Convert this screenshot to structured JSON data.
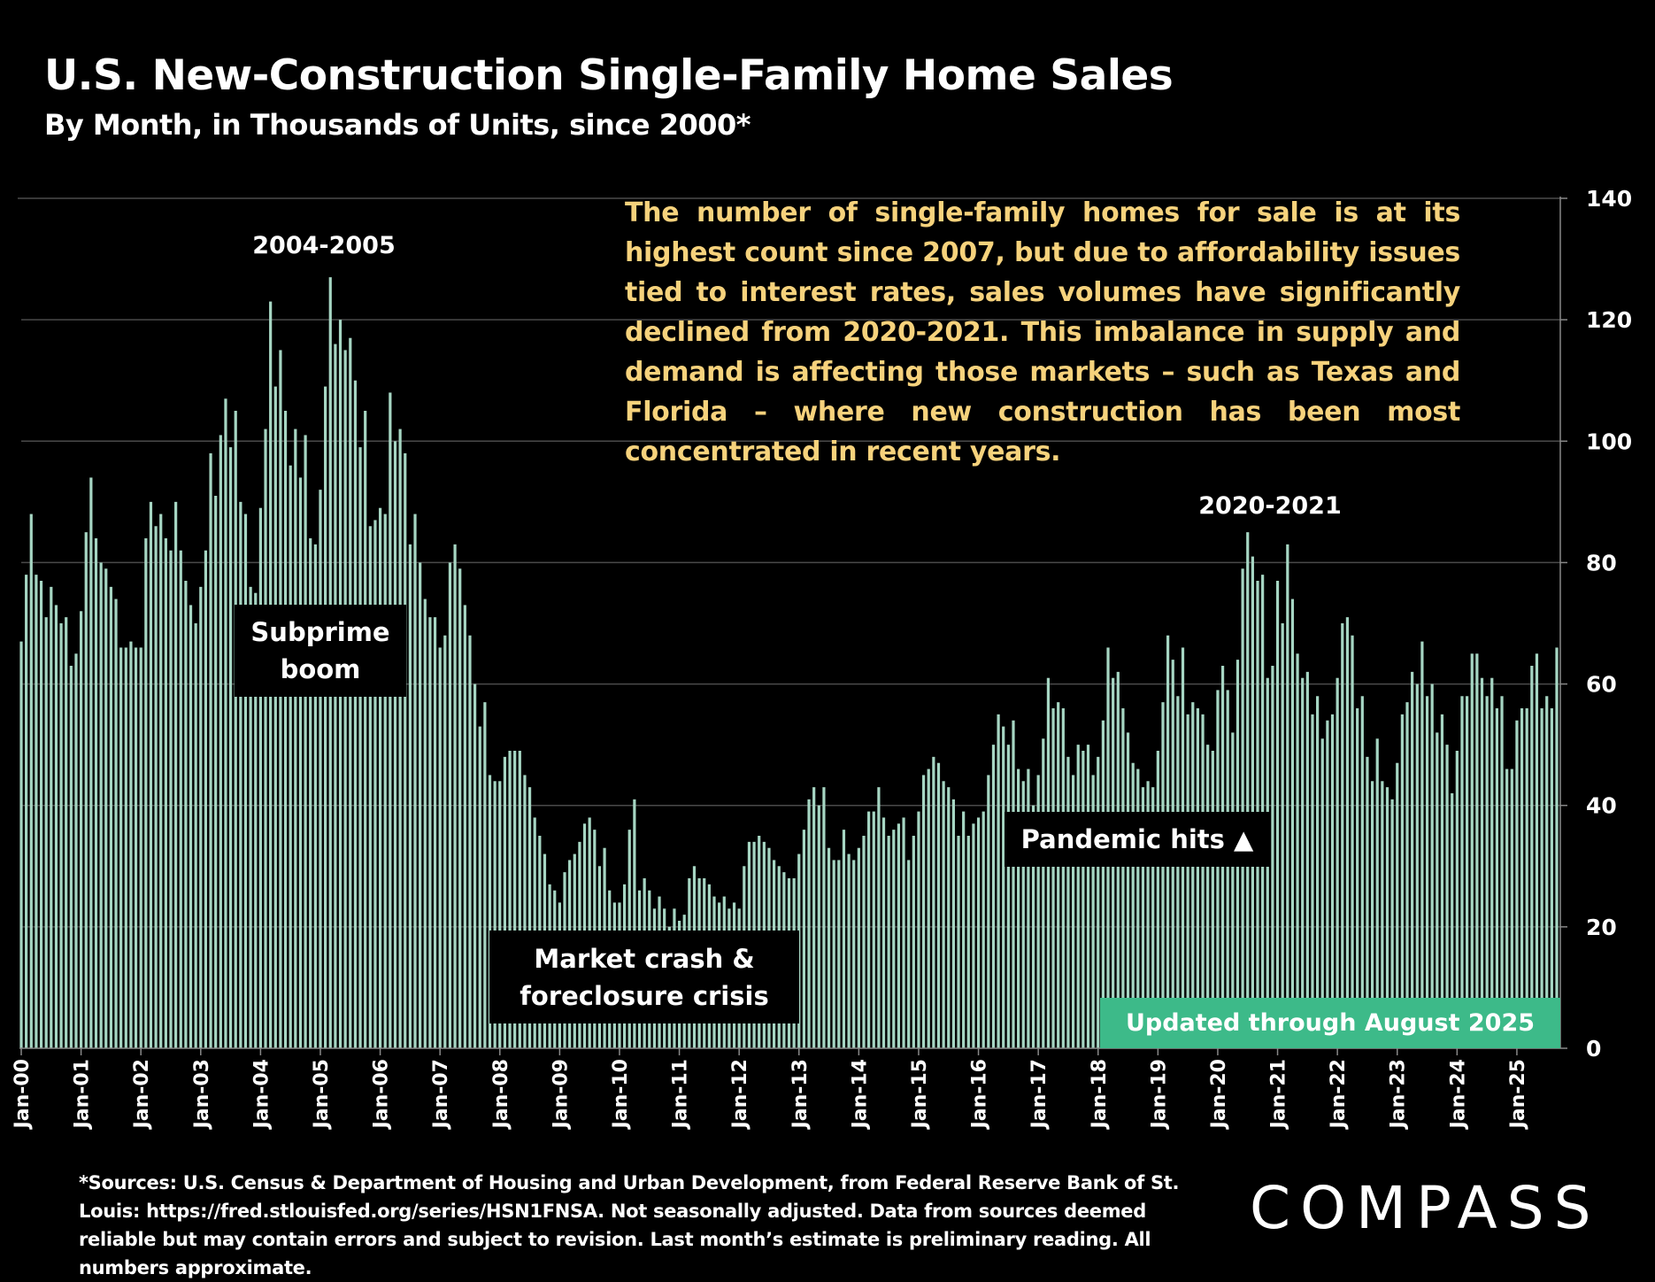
{
  "title": "U.S. New-Construction Single-Family Home Sales",
  "subtitle": "By Month, in Thousands of Units, since 2000*",
  "annotation_text": "The number of single-family homes for sale is at its highest count since 2007, but due to affordability issues tied to interest rates, sales volumes have significantly declined from 2020-2021. This imbalance in supply and demand is affecting those markets – such as Texas and Florida – where new construction has been most concentrated in recent years.",
  "labels": {
    "peak1": "2004-2005",
    "peak2": "2020-2021",
    "subprime": "Subprime boom",
    "crash": "Market crash & foreclosure crisis",
    "pandemic": "Pandemic hits ▲",
    "updated": "Updated through August 2025"
  },
  "footnote": "*Sources: U.S. Census & Department of Housing and Urban Development, from Federal Reserve Bank of St. Louis: https://fred.stlouisfed.org/series/HSN1FNSA. Not seasonally adjusted. Data from sources deemed reliable but may contain errors and subject to revision. Last month’s estimate is preliminary reading. All numbers approximate.",
  "logo": "COMPASS",
  "colors": {
    "bar": "#a6d6c3",
    "annotation": "#f6d27c",
    "updated_badge": "#3dba89",
    "background": "#000000"
  },
  "chart_data": {
    "type": "bar",
    "title": "U.S. New-Construction Single-Family Home Sales",
    "subtitle": "By Month, in Thousands of Units, since 2000*",
    "start": "Jan-00",
    "end": "Aug-25",
    "frequency": "monthly",
    "ylim": [
      0,
      140
    ],
    "y_ticks": [
      0,
      20,
      40,
      60,
      80,
      100,
      120,
      140
    ],
    "y_axis_side": "right",
    "grid": true,
    "x_tick_labels": [
      "Jan-00",
      "Jan-01",
      "Jan-02",
      "Jan-03",
      "Jan-04",
      "Jan-05",
      "Jan-06",
      "Jan-07",
      "Jan-08",
      "Jan-09",
      "Jan-10",
      "Jan-11",
      "Jan-12",
      "Jan-13",
      "Jan-14",
      "Jan-15",
      "Jan-16",
      "Jan-17",
      "Jan-18",
      "Jan-19",
      "Jan-20",
      "Jan-21",
      "Jan-22",
      "Jan-23",
      "Jan-24",
      "Jan-25"
    ],
    "values_by_year": {
      "2000": [
        67,
        78,
        88,
        78,
        77,
        71,
        76,
        73,
        70,
        71,
        63,
        65
      ],
      "2001": [
        72,
        85,
        94,
        84,
        80,
        79,
        76,
        74,
        66,
        66,
        67,
        66
      ],
      "2002": [
        66,
        84,
        90,
        86,
        88,
        84,
        82,
        90,
        82,
        77,
        73,
        70
      ],
      "2003": [
        76,
        82,
        98,
        91,
        101,
        107,
        99,
        105,
        90,
        88,
        76,
        75
      ],
      "2004": [
        89,
        102,
        123,
        109,
        115,
        105,
        96,
        102,
        94,
        101,
        84,
        83
      ],
      "2005": [
        92,
        109,
        127,
        116,
        120,
        115,
        117,
        110,
        99,
        105,
        86,
        87
      ],
      "2006": [
        89,
        88,
        108,
        100,
        102,
        98,
        83,
        88,
        80,
        74,
        71,
        71
      ],
      "2007": [
        66,
        68,
        80,
        83,
        79,
        73,
        68,
        60,
        53,
        57,
        45,
        44
      ],
      "2008": [
        44,
        48,
        49,
        49,
        49,
        45,
        43,
        38,
        35,
        32,
        27,
        26
      ],
      "2009": [
        24,
        29,
        31,
        32,
        34,
        37,
        38,
        36,
        30,
        33,
        26,
        24
      ],
      "2010": [
        24,
        27,
        36,
        41,
        26,
        28,
        26,
        23,
        25,
        23,
        20,
        23
      ],
      "2011": [
        21,
        22,
        28,
        30,
        28,
        28,
        27,
        25,
        24,
        25,
        23,
        24
      ],
      "2012": [
        23,
        30,
        34,
        34,
        35,
        34,
        33,
        31,
        30,
        29,
        28,
        28
      ],
      "2013": [
        32,
        36,
        41,
        43,
        40,
        43,
        33,
        31,
        31,
        36,
        32,
        31
      ],
      "2014": [
        33,
        35,
        39,
        39,
        43,
        38,
        35,
        36,
        37,
        38,
        31,
        35
      ],
      "2015": [
        39,
        45,
        46,
        48,
        47,
        44,
        43,
        41,
        35,
        39,
        35,
        37
      ],
      "2016": [
        38,
        39,
        45,
        50,
        55,
        53,
        50,
        54,
        46,
        44,
        46,
        40
      ],
      "2017": [
        45,
        51,
        61,
        56,
        57,
        56,
        48,
        45,
        50,
        49,
        50,
        45
      ],
      "2018": [
        48,
        54,
        66,
        61,
        62,
        56,
        52,
        47,
        46,
        43,
        44,
        43
      ],
      "2019": [
        49,
        57,
        68,
        64,
        58,
        66,
        55,
        57,
        56,
        55,
        50,
        49
      ],
      "2020": [
        59,
        63,
        59,
        52,
        64,
        79,
        85,
        81,
        77,
        78,
        61,
        63
      ],
      "2021": [
        77,
        70,
        83,
        74,
        65,
        61,
        62,
        55,
        58,
        51,
        54,
        55
      ],
      "2022": [
        61,
        70,
        71,
        68,
        56,
        58,
        48,
        44,
        51,
        44,
        43,
        41
      ],
      "2023": [
        47,
        55,
        57,
        62,
        60,
        67,
        58,
        60,
        52,
        55,
        50,
        42
      ],
      "2024": [
        49,
        58,
        58,
        65,
        65,
        61,
        58,
        61,
        56,
        58,
        46,
        46
      ],
      "2025": [
        54,
        56,
        56,
        63,
        65,
        56,
        58,
        56,
        66
      ]
    }
  }
}
